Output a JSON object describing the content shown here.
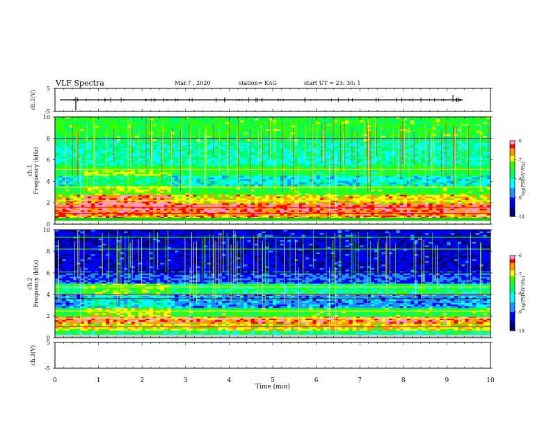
{
  "header": {
    "title": "VLF Spectra",
    "date": "Mar.7 , 2020",
    "station": "station= KAG",
    "start": "start  UT =  23: 30: 1"
  },
  "colors": {
    "palette": [
      "#000000",
      "#00007a",
      "#0000ff",
      "#1e90ff",
      "#00ffff",
      "#00ff66",
      "#33ff00",
      "#ffff00",
      "#ff9900",
      "#ff0000",
      "#ff99cc",
      "#ffffff"
    ]
  },
  "chart_data": [
    {
      "type": "line",
      "name": "ch1-waveform",
      "ylabel": "ch.1(V)",
      "ylim": [
        -5,
        5
      ],
      "yticks": [
        "5",
        "-5"
      ],
      "x_range_min": [
        0,
        10
      ],
      "baseline": 0
    },
    {
      "type": "heatmap",
      "name": "ch1-spectrogram",
      "ylabel": "ch.1\nFrequency  (kHz)",
      "ylim": [
        0,
        10
      ],
      "yticks": [
        "0",
        "2",
        "4",
        "6",
        "8",
        "10"
      ],
      "colorbar": {
        "label": "log(PSD)(V²/Hz)",
        "range": [
          -10,
          -6
        ],
        "ticks": [
          "-6",
          "-7",
          "-8",
          "-9",
          "-10"
        ]
      }
    },
    {
      "type": "heatmap",
      "name": "ch2-spectrogram",
      "ylabel": "ch.2\nFrequency  (kHz)",
      "ylim": [
        0,
        10
      ],
      "yticks": [
        "0",
        "2",
        "4",
        "6",
        "8",
        "10"
      ],
      "colorbar": {
        "label": "log(PSD)(V²/Hz)",
        "range": [
          -10,
          -6
        ],
        "ticks": [
          "-6",
          "-7",
          "-8",
          "-9",
          "-10"
        ]
      }
    },
    {
      "type": "line",
      "name": "ch3-waveform",
      "ylabel": "ch.3(V)",
      "ylim": [
        -5,
        5
      ],
      "yticks": [
        "5",
        "-5"
      ],
      "baseline": null
    }
  ],
  "xaxis": {
    "label": "Time  (min)",
    "range": [
      0,
      10
    ],
    "ticks": [
      "0",
      "1",
      "2",
      "3",
      "4",
      "5",
      "6",
      "7",
      "8",
      "9",
      "10"
    ]
  }
}
